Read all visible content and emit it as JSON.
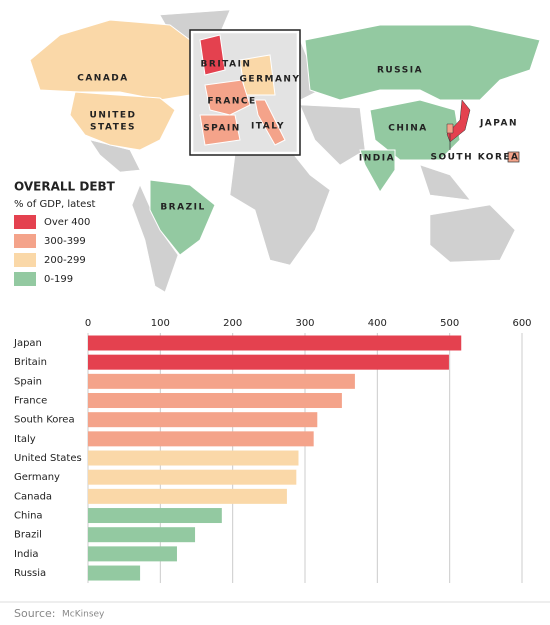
{
  "map": {
    "labels": [
      "CANADA",
      "UNITED",
      "STATES",
      "BRAZIL",
      "RUSSIA",
      "CHINA",
      "INDIA",
      "JAPAN",
      "SOUTH KOREA",
      "BRITAIN",
      "GERMANY",
      "FRANCE",
      "SPAIN",
      "ITALY"
    ]
  },
  "legend": {
    "title": "OVERALL DEBT",
    "subtitle": "% of GDP, latest",
    "items": [
      {
        "label": "Over 400",
        "color": "#e4414f"
      },
      {
        "label": "300-399",
        "color": "#f4a38a"
      },
      {
        "label": "200-299",
        "color": "#fad8a8"
      },
      {
        "label": "0-199",
        "color": "#93c9a1"
      }
    ]
  },
  "chart_data": {
    "type": "hbar",
    "categories": [
      "Japan",
      "Britain",
      "Spain",
      "France",
      "South Korea",
      "Italy",
      "United States",
      "Germany",
      "Canada",
      "China",
      "Brazil",
      "India",
      "Russia"
    ],
    "values": [
      516,
      499,
      369,
      351,
      317,
      312,
      291,
      288,
      275,
      185,
      148,
      123,
      72
    ],
    "colors": [
      "#e4414f",
      "#e4414f",
      "#f4a38a",
      "#f4a38a",
      "#f4a38a",
      "#f4a38a",
      "#fad8a8",
      "#fad8a8",
      "#fad8a8",
      "#93c9a1",
      "#93c9a1",
      "#93c9a1",
      "#93c9a1"
    ],
    "xlim": [
      0,
      600
    ],
    "xticks": [
      0,
      100,
      200,
      300,
      400,
      500,
      600
    ],
    "grid": true
  },
  "source_label": "Source:",
  "source": "McKinsey"
}
